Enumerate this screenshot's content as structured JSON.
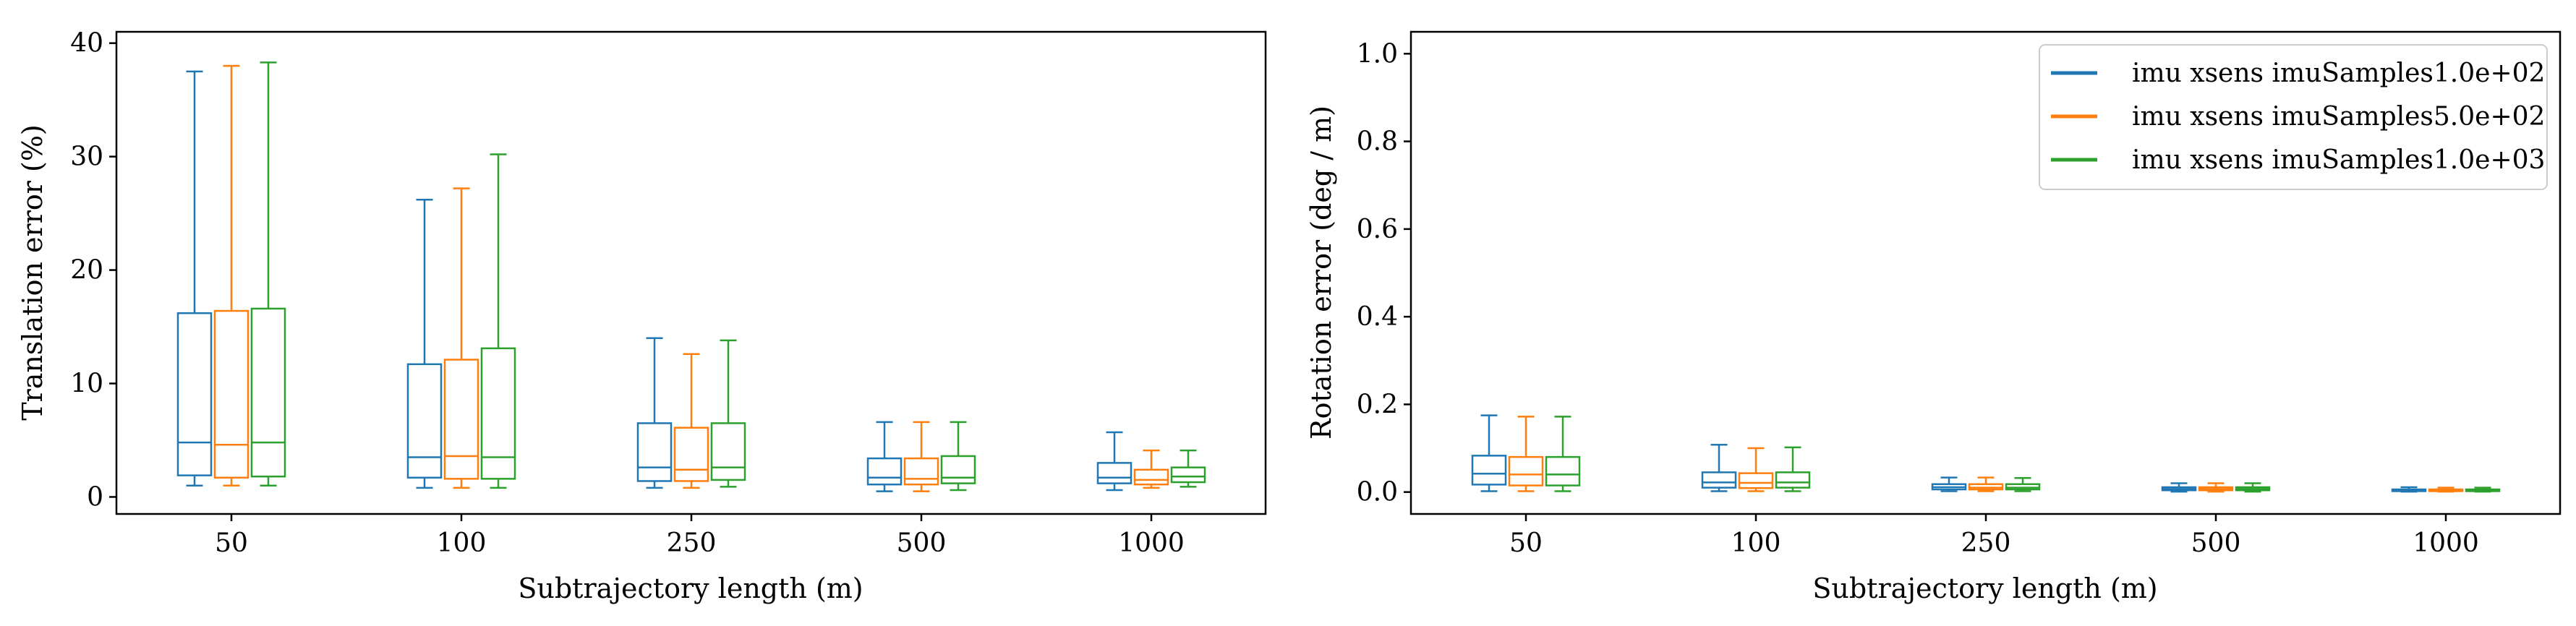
{
  "colors": {
    "series": [
      "#1f77b4",
      "#ff7f0e",
      "#2ca02c"
    ],
    "axes": "#000000",
    "legend_frame": "#cccccc"
  },
  "chart_data": [
    {
      "type": "box",
      "xlabel": "Subtrajectory length (m)",
      "ylabel": "Translation error (%)",
      "categories": [
        "50",
        "100",
        "250",
        "500",
        "1000"
      ],
      "ylim": [
        -1.5,
        41
      ],
      "yticks": [
        0,
        10,
        20,
        30,
        40
      ],
      "grid": false,
      "legend": null,
      "series": [
        {
          "stats": [
            {
              "whislo": 1.0,
              "q1": 1.9,
              "med": 4.8,
              "q3": 16.2,
              "whishi": 37.5
            },
            {
              "whislo": 0.8,
              "q1": 1.7,
              "med": 3.5,
              "q3": 11.7,
              "whishi": 26.2
            },
            {
              "whislo": 0.8,
              "q1": 1.4,
              "med": 2.6,
              "q3": 6.5,
              "whishi": 14.0
            },
            {
              "whislo": 0.5,
              "q1": 1.1,
              "med": 1.7,
              "q3": 3.4,
              "whishi": 6.6
            },
            {
              "whislo": 0.6,
              "q1": 1.2,
              "med": 1.7,
              "q3": 3.0,
              "whishi": 5.7
            }
          ]
        },
        {
          "stats": [
            {
              "whislo": 1.0,
              "q1": 1.7,
              "med": 4.6,
              "q3": 16.4,
              "whishi": 38.0
            },
            {
              "whislo": 0.8,
              "q1": 1.6,
              "med": 3.6,
              "q3": 12.1,
              "whishi": 27.2
            },
            {
              "whislo": 0.8,
              "q1": 1.4,
              "med": 2.4,
              "q3": 6.1,
              "whishi": 12.6
            },
            {
              "whislo": 0.5,
              "q1": 1.1,
              "med": 1.6,
              "q3": 3.4,
              "whishi": 6.6
            },
            {
              "whislo": 0.8,
              "q1": 1.1,
              "med": 1.5,
              "q3": 2.4,
              "whishi": 4.1
            }
          ]
        },
        {
          "stats": [
            {
              "whislo": 1.0,
              "q1": 1.8,
              "med": 4.8,
              "q3": 16.6,
              "whishi": 38.3
            },
            {
              "whislo": 0.8,
              "q1": 1.6,
              "med": 3.5,
              "q3": 13.1,
              "whishi": 30.2
            },
            {
              "whislo": 0.9,
              "q1": 1.5,
              "med": 2.6,
              "q3": 6.5,
              "whishi": 13.8
            },
            {
              "whislo": 0.6,
              "q1": 1.2,
              "med": 1.7,
              "q3": 3.6,
              "whishi": 6.6
            },
            {
              "whislo": 0.9,
              "q1": 1.3,
              "med": 1.8,
              "q3": 2.6,
              "whishi": 4.1
            }
          ]
        }
      ]
    },
    {
      "type": "box",
      "xlabel": "Subtrajectory length (m)",
      "ylabel": "Rotation error (deg / m)",
      "categories": [
        "50",
        "100",
        "250",
        "500",
        "1000"
      ],
      "ylim": [
        -0.05,
        1.05
      ],
      "yticks": [
        0.0,
        0.2,
        0.4,
        0.6,
        0.8,
        1.0
      ],
      "yticklabels": [
        "0.0",
        "0.2",
        "0.4",
        "0.6",
        "0.8",
        "1.0"
      ],
      "grid": false,
      "legend": "top-right",
      "series": [
        {
          "name": "imu xsens imuSamples1.0e+02",
          "stats": [
            {
              "whislo": 0.002,
              "q1": 0.017,
              "med": 0.042,
              "q3": 0.083,
              "whishi": 0.175
            },
            {
              "whislo": 0.002,
              "q1": 0.01,
              "med": 0.022,
              "q3": 0.045,
              "whishi": 0.108
            },
            {
              "whislo": 0.002,
              "q1": 0.006,
              "med": 0.011,
              "q3": 0.018,
              "whishi": 0.033
            },
            {
              "whislo": 0.001,
              "q1": 0.004,
              "med": 0.007,
              "q3": 0.011,
              "whishi": 0.02
            },
            {
              "whislo": 0.001,
              "q1": 0.002,
              "med": 0.004,
              "q3": 0.006,
              "whishi": 0.011
            }
          ]
        },
        {
          "name": "imu xsens imuSamples5.0e+02",
          "stats": [
            {
              "whislo": 0.002,
              "q1": 0.015,
              "med": 0.04,
              "q3": 0.08,
              "whishi": 0.172
            },
            {
              "whislo": 0.002,
              "q1": 0.009,
              "med": 0.021,
              "q3": 0.043,
              "whishi": 0.1
            },
            {
              "whislo": 0.002,
              "q1": 0.006,
              "med": 0.01,
              "q3": 0.018,
              "whishi": 0.033
            },
            {
              "whislo": 0.001,
              "q1": 0.004,
              "med": 0.007,
              "q3": 0.011,
              "whishi": 0.02
            },
            {
              "whislo": 0.001,
              "q1": 0.002,
              "med": 0.004,
              "q3": 0.006,
              "whishi": 0.01
            }
          ]
        },
        {
          "name": "imu xsens imuSamples1.0e+03",
          "stats": [
            {
              "whislo": 0.002,
              "q1": 0.015,
              "med": 0.04,
              "q3": 0.08,
              "whishi": 0.172
            },
            {
              "whislo": 0.002,
              "q1": 0.01,
              "med": 0.022,
              "q3": 0.045,
              "whishi": 0.102
            },
            {
              "whislo": 0.002,
              "q1": 0.006,
              "med": 0.01,
              "q3": 0.018,
              "whishi": 0.032
            },
            {
              "whislo": 0.001,
              "q1": 0.004,
              "med": 0.007,
              "q3": 0.011,
              "whishi": 0.02
            },
            {
              "whislo": 0.001,
              "q1": 0.002,
              "med": 0.004,
              "q3": 0.006,
              "whishi": 0.01
            }
          ]
        }
      ]
    }
  ]
}
